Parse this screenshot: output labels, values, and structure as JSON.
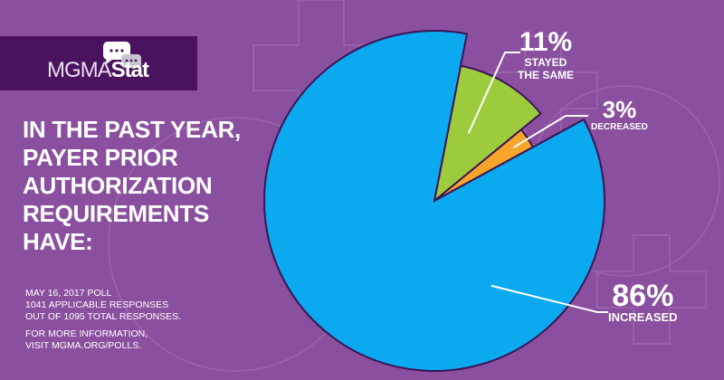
{
  "brand": {
    "logo_main": "MGMA",
    "logo_accent": "Stat"
  },
  "headline": [
    "IN THE PAST YEAR,",
    "PAYER PRIOR",
    "AUTHORIZATION",
    "REQUIREMENTS",
    "HAVE:"
  ],
  "footer": {
    "poll_date": "MAY 16, 2017 POLL",
    "responses": "1041 APPLICABLE RESPONSES",
    "total": "OUT OF 1095 TOTAL RESPONSES.",
    "info1": "FOR MORE INFORMATION,",
    "info2": "VISIT MGMA.ORG/POLLS."
  },
  "colors": {
    "background": "#8a4f9e",
    "banner": "#4b1260",
    "increased": "#0aa9f0",
    "stayed": "#9ccc3c",
    "decreased": "#f5a52a",
    "outline": "#3b1458"
  },
  "chart_data": {
    "type": "pie",
    "slices": [
      {
        "label": "STAYED THE SAME",
        "value": 11,
        "display": "11%",
        "caption": [
          "STAYED",
          "THE SAME"
        ]
      },
      {
        "label": "DECREASED",
        "value": 3,
        "display": "3%",
        "caption": [
          "DECREASED"
        ]
      },
      {
        "label": "INCREASED",
        "value": 86,
        "display": "86%",
        "caption": [
          "INCREASED"
        ]
      }
    ]
  }
}
